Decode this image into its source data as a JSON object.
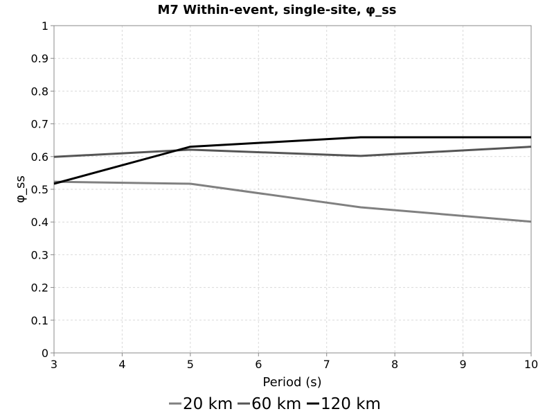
{
  "chart_data": {
    "type": "line",
    "title": "M7 Within-event, single-site, φ_ss",
    "xlabel": "Period (s)",
    "ylabel": "φ_ss",
    "xlim": [
      3,
      10
    ],
    "ylim": [
      0,
      1
    ],
    "xticks": [
      "3",
      "4",
      "5",
      "6",
      "7",
      "8",
      "9",
      "10"
    ],
    "yticks": [
      "0",
      "0.1",
      "0.2",
      "0.3",
      "0.4",
      "0.5",
      "0.6",
      "0.7",
      "0.8",
      "0.9",
      "1"
    ],
    "grid": true,
    "legend_position": "bottom",
    "series": [
      {
        "name": "20 km",
        "color": "#808080",
        "x": [
          3,
          5,
          7.5,
          10
        ],
        "y": [
          0.523,
          0.517,
          0.445,
          0.401
        ]
      },
      {
        "name": "60 km",
        "color": "#555555",
        "x": [
          3,
          5,
          7.5,
          10
        ],
        "y": [
          0.599,
          0.621,
          0.602,
          0.63
        ]
      },
      {
        "name": "120 km",
        "color": "#000000",
        "x": [
          3,
          5,
          7.5,
          10
        ],
        "y": [
          0.517,
          0.63,
          0.659,
          0.659
        ]
      }
    ]
  }
}
